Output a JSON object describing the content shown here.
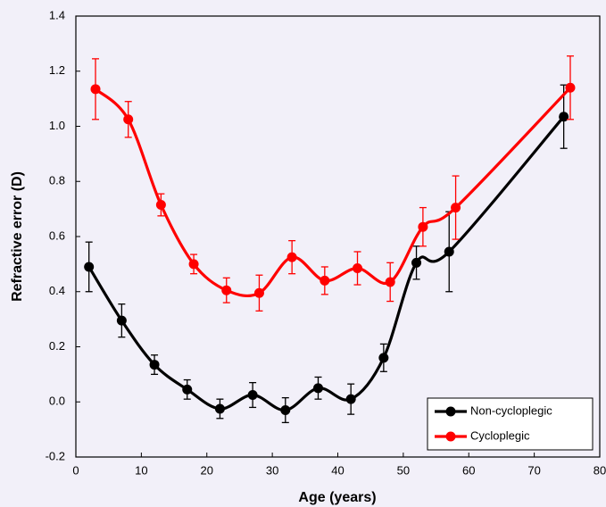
{
  "chart_data": {
    "type": "line",
    "x_label": "Age (years)",
    "y_label": "Refractive error (D)",
    "xlim": [
      0,
      80
    ],
    "xticks": [
      0,
      10,
      20,
      30,
      40,
      50,
      60,
      70,
      80
    ],
    "ylim": [
      -0.2,
      1.4
    ],
    "yticks": [
      -0.2,
      {
        "value": 0,
        "label": "0.0"
      },
      0.2,
      0.4,
      0.6,
      0.8,
      {
        "value": 1,
        "label": "1.0"
      },
      1.2,
      1.4
    ],
    "legend": "bottom-right",
    "smooth": true,
    "series": [
      {
        "name": "Non-cycloplegic",
        "color": "#000000",
        "x": [
          2,
          7,
          12,
          17,
          22,
          27,
          32,
          37,
          42,
          47,
          52,
          57,
          74.5
        ],
        "values": [
          0.49,
          0.295,
          0.135,
          0.045,
          -0.025,
          0.025,
          -0.03,
          0.05,
          0.01,
          0.16,
          0.505,
          0.545,
          1.035
        ],
        "errors": [
          0.09,
          0.06,
          0.035,
          0.035,
          0.035,
          0.045,
          0.045,
          0.04,
          0.055,
          0.05,
          0.06,
          0.145,
          0.115
        ]
      },
      {
        "name": "Cycloplegic",
        "color": "#ff0000",
        "x": [
          3,
          8,
          13,
          18,
          23,
          28,
          33,
          38,
          43,
          48,
          53,
          58,
          75.5
        ],
        "values": [
          1.135,
          1.025,
          0.715,
          0.5,
          0.405,
          0.395,
          0.525,
          0.44,
          0.485,
          0.435,
          0.635,
          0.705,
          1.14
        ],
        "errors": [
          0.11,
          0.065,
          0.04,
          0.035,
          0.045,
          0.065,
          0.06,
          0.05,
          0.06,
          0.07,
          0.07,
          0.115,
          0.115
        ]
      }
    ]
  }
}
